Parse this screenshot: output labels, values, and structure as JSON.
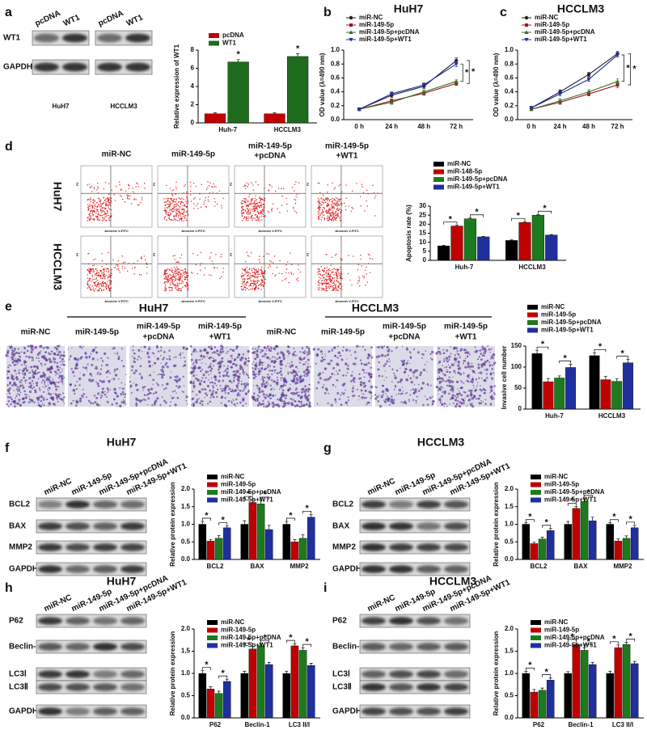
{
  "panel_labels": [
    "a",
    "b",
    "c",
    "d",
    "e",
    "f",
    "g",
    "h",
    "i"
  ],
  "blots": [
    {
      "groups": [
        "HuH7",
        "HCCLM3"
      ],
      "lanes": [
        "pcDNA",
        "WT1"
      ],
      "rows": [
        "WT1",
        "GAPDH"
      ]
    },
    {
      "lanes": [
        "miR-NC",
        "miR-149-5p",
        "miR-149-5p+pcDNA",
        "miR-149-5p+WT1"
      ],
      "rows": [
        "BCL2",
        "BAX",
        "MMP2",
        "GAPDH"
      ]
    },
    {
      "lanes": [
        "miR-NC",
        "miR-149-5p",
        "miR-149-5p+pcDNA",
        "miR-149-5p+WT1"
      ],
      "rows": [
        "BCL2",
        "BAX",
        "MMP2",
        "GAPDH"
      ]
    },
    {
      "lanes": [
        "miR-NC",
        "miR-149-5p",
        "miR-149-5p+pcDNA",
        "miR-149-5p+WT1"
      ],
      "rows": [
        "P62",
        "Beclin-1",
        "LC3Ⅰ",
        "LC3Ⅱ",
        "GAPDH"
      ]
    },
    {
      "lanes": [
        "miR-NC",
        "miR-149-5p",
        "miR-149-5p+pcDNA",
        "miR-149-5p+WT1"
      ],
      "rows": [
        "P62",
        "Beclin-1",
        "LC3Ⅰ",
        "LC3Ⅱ",
        "GAPDH"
      ]
    }
  ],
  "flow": {
    "columns": [
      [
        "miR-NC"
      ],
      [
        "miR-149-5p"
      ],
      [
        "miR-149-5p",
        "+pcDNA"
      ],
      [
        "miR-149-5p",
        "+WT1"
      ]
    ],
    "rows": [
      "HuH7",
      "HCCLM3"
    ],
    "x_label": "Annexin V-FITC",
    "y_label": "PI"
  },
  "invasion": {
    "groups": [
      "HuH7",
      "HCCLM3"
    ],
    "columns": [
      [
        "miR-NC"
      ],
      [
        "miR-149-5p"
      ],
      [
        "miR-149-5p",
        "+pcDNA"
      ],
      [
        "miR-149-5p",
        "+WT1"
      ]
    ]
  },
  "chart_data": [
    {
      "type": "bar",
      "ylabel": "Relative expression of WT1",
      "categories": [
        "Huh-7",
        "HCCLM3"
      ],
      "marker": "*",
      "series": [
        {
          "name": "pcDNA",
          "color": "#c00000",
          "values": [
            1,
            1
          ],
          "errors": [
            0.1,
            0.1
          ]
        },
        {
          "name": "WT1",
          "color": "#1e6b1e",
          "values": [
            6.7,
            7.3
          ],
          "errors": [
            0.25,
            0.3
          ]
        }
      ],
      "ylim": [
        0,
        8
      ],
      "yticks": [
        0,
        2,
        4,
        6,
        8
      ]
    },
    {
      "type": "line",
      "title": "HuH7",
      "ylabel": "OD value (λ=490 nm)",
      "categories": [
        "0 h",
        "24 h",
        "48 h",
        "72 h"
      ],
      "marker": "*",
      "series": [
        {
          "name": "miR-NC",
          "color": "#222222",
          "values": [
            0.15,
            0.35,
            0.48,
            0.85
          ],
          "errors": [
            0.02,
            0.03,
            0.03,
            0.04
          ]
        },
        {
          "name": "miR-149-5p",
          "color": "#a0141e",
          "values": [
            0.15,
            0.27,
            0.38,
            0.52
          ],
          "errors": [
            0.02,
            0.03,
            0.03,
            0.03
          ]
        },
        {
          "name": "miR-149-5p+pcDNA",
          "color": "#3b6e2b",
          "values": [
            0.15,
            0.25,
            0.4,
            0.55
          ],
          "errors": [
            0.02,
            0.03,
            0.03,
            0.03
          ]
        },
        {
          "name": "miR-149-5p+WT1",
          "color": "#1f2f9e",
          "values": [
            0.15,
            0.37,
            0.5,
            0.8
          ],
          "errors": [
            0.02,
            0.03,
            0.03,
            0.04
          ]
        }
      ],
      "ylim": [
        0,
        1
      ],
      "yticks": [
        {
          "value": 0,
          "label": "0.0"
        },
        0.2,
        0.4,
        0.6,
        0.8,
        {
          "value": 1,
          "label": "1.0"
        }
      ]
    },
    {
      "type": "line",
      "title": "HCCLM3",
      "ylabel": "OD value (λ=490 nm)",
      "categories": [
        "0 h",
        "24 h",
        "48 h",
        "72 h"
      ],
      "marker": "*",
      "series": [
        {
          "name": "miR-NC",
          "color": "#222222",
          "values": [
            0.17,
            0.4,
            0.65,
            0.95
          ],
          "errors": [
            0.02,
            0.03,
            0.03,
            0.03
          ]
        },
        {
          "name": "miR-149-5p",
          "color": "#a0141e",
          "values": [
            0.15,
            0.25,
            0.37,
            0.5
          ],
          "errors": [
            0.02,
            0.03,
            0.03,
            0.04
          ]
        },
        {
          "name": "miR-149-5p+pcDNA",
          "color": "#3b6e2b",
          "values": [
            0.15,
            0.27,
            0.4,
            0.55
          ],
          "errors": [
            0.02,
            0.03,
            0.03,
            0.04
          ]
        },
        {
          "name": "miR-149-5p+WT1",
          "color": "#1f2f9e",
          "values": [
            0.17,
            0.37,
            0.58,
            0.93
          ],
          "errors": [
            0.02,
            0.03,
            0.03,
            0.03
          ]
        }
      ],
      "ylim": [
        0,
        1
      ],
      "yticks": [
        {
          "value": 0,
          "label": "0.0"
        },
        0.2,
        0.4,
        0.6,
        0.8,
        {
          "value": 1,
          "label": "1.0"
        }
      ]
    },
    {
      "type": "bar",
      "ylabel": "Apoptosis rate (%)",
      "categories": [
        "Huh-7",
        "HCCLM3"
      ],
      "marker": "*",
      "series": [
        {
          "name": "miR-NC",
          "color": "#000000",
          "values": [
            8,
            11
          ],
          "errors": [
            0.3,
            0.3
          ]
        },
        {
          "name": "miR-148-5p",
          "color": "#c00000",
          "values": [
            19,
            21
          ],
          "errors": [
            0.4,
            0.4
          ]
        },
        {
          "name": "miR-149-5p+pcDNA",
          "color": "#1e7a1e",
          "values": [
            23,
            25
          ],
          "errors": [
            0.4,
            0.4
          ]
        },
        {
          "name": "miR-149-5p+WT1",
          "color": "#1f2f9e",
          "values": [
            13,
            14
          ],
          "errors": [
            0.3,
            0.3
          ]
        }
      ],
      "ylim": [
        0,
        30
      ],
      "yticks": [
        0,
        5,
        10,
        15,
        20,
        25,
        30
      ]
    },
    {
      "type": "bar",
      "ylabel": "Invasive cell number",
      "categories": [
        "Huh-7",
        "HCCLM3"
      ],
      "marker": "*",
      "series": [
        {
          "name": "miR-NC",
          "color": "#000000",
          "values": [
            132,
            127
          ],
          "errors": [
            8,
            7
          ]
        },
        {
          "name": "miR-149-5p",
          "color": "#c00000",
          "values": [
            65,
            70
          ],
          "errors": [
            8,
            8
          ]
        },
        {
          "name": "miR-149-5p+pcDNA",
          "color": "#1e7a1e",
          "values": [
            74,
            66
          ],
          "errors": [
            5,
            6
          ]
        },
        {
          "name": "miR-149-5p+WT1",
          "color": "#1f2f9e",
          "values": [
            99,
            110
          ],
          "errors": [
            8,
            8
          ]
        }
      ],
      "ylim": [
        0,
        150
      ],
      "yticks": [
        0,
        50,
        100,
        150
      ]
    },
    {
      "type": "bar",
      "title": "HuH7",
      "ylabel": "Relative protein expression",
      "categories": [
        "BCL2",
        "BAX",
        "MMP2"
      ],
      "marker": "*",
      "series": [
        {
          "name": "miR-NC",
          "color": "#000000",
          "values": [
            1.0,
            1.0,
            1.0
          ],
          "errors": [
            0.08,
            0.1,
            0.08
          ]
        },
        {
          "name": "miR-149-5p",
          "color": "#c00000",
          "values": [
            0.52,
            1.62,
            0.5
          ],
          "errors": [
            0.05,
            0.08,
            0.06
          ]
        },
        {
          "name": "miR-149-5p+pcDNA",
          "color": "#1e7a1e",
          "values": [
            0.6,
            1.58,
            0.6
          ],
          "errors": [
            0.08,
            0.1,
            0.1
          ]
        },
        {
          "name": "miR-149-5p+WT1",
          "color": "#1f2f9e",
          "values": [
            0.9,
            0.85,
            1.2
          ],
          "errors": [
            0.05,
            0.12,
            0.08
          ]
        }
      ],
      "ylim": [
        0,
        2
      ],
      "yticks": [
        {
          "value": 0,
          "label": "0.0"
        },
        0.5,
        {
          "value": 1,
          "label": "1.0"
        },
        1.5,
        {
          "value": 2,
          "label": "2.0"
        }
      ]
    },
    {
      "type": "bar",
      "title": "HCCLM3",
      "ylabel": "Relative protein expression",
      "categories": [
        "BCL2",
        "BAX",
        "MMP2"
      ],
      "marker": "*",
      "series": [
        {
          "name": "miR-NC",
          "color": "#000000",
          "values": [
            1.0,
            1.0,
            1.0
          ],
          "errors": [
            0.04,
            0.08,
            0.04
          ]
        },
        {
          "name": "miR-149-5p",
          "color": "#c00000",
          "values": [
            0.45,
            1.45,
            0.52
          ],
          "errors": [
            0.04,
            0.05,
            0.06
          ]
        },
        {
          "name": "miR-149-5p+pcDNA",
          "color": "#1e7a1e",
          "values": [
            0.58,
            1.65,
            0.6
          ],
          "errors": [
            0.05,
            0.08,
            0.07
          ]
        },
        {
          "name": "miR-149-5p+WT1",
          "color": "#1f2f9e",
          "values": [
            0.82,
            1.1,
            0.9
          ],
          "errors": [
            0.06,
            0.1,
            0.07
          ]
        }
      ],
      "ylim": [
        0,
        2
      ],
      "yticks": [
        {
          "value": 0,
          "label": "0.0"
        },
        0.5,
        {
          "value": 1,
          "label": "1.0"
        },
        1.5,
        {
          "value": 2,
          "label": "2.0"
        }
      ]
    },
    {
      "type": "bar",
      "title": "HuH7",
      "ylabel": "Relative protein expression",
      "categories": [
        "P62",
        "Beclin-1",
        "LC3 II/I"
      ],
      "marker": "*",
      "series": [
        {
          "name": "miR-NC",
          "color": "#000000",
          "values": [
            1.0,
            1.0,
            1.0
          ],
          "errors": [
            0.06,
            0.05,
            0.05
          ]
        },
        {
          "name": "miR-149-5p",
          "color": "#c00000",
          "values": [
            0.65,
            1.55,
            1.62
          ],
          "errors": [
            0.05,
            0.06,
            0.05
          ]
        },
        {
          "name": "miR-149-5p+pcDNA",
          "color": "#1e7a1e",
          "values": [
            0.55,
            1.62,
            1.52
          ],
          "errors": [
            0.05,
            0.05,
            0.06
          ]
        },
        {
          "name": "miR-149-5p+WT1",
          "color": "#1f2f9e",
          "values": [
            0.82,
            1.2,
            1.18
          ],
          "errors": [
            0.05,
            0.05,
            0.05
          ]
        }
      ],
      "ylim": [
        0,
        2
      ],
      "yticks": [
        {
          "value": 0,
          "label": "0.0"
        },
        0.5,
        {
          "value": 1,
          "label": "1.0"
        },
        1.5,
        {
          "value": 2,
          "label": "2.0"
        }
      ]
    },
    {
      "type": "bar",
      "title": "HCCLM3",
      "ylabel": "Relative protein expression",
      "categories": [
        "P62",
        "Beclin-1",
        "LC3 II/I"
      ],
      "marker": "*",
      "series": [
        {
          "name": "miR-NC",
          "color": "#000000",
          "values": [
            1.0,
            1.0,
            1.0
          ],
          "errors": [
            0.05,
            0.04,
            0.05
          ]
        },
        {
          "name": "miR-149-5p",
          "color": "#c00000",
          "values": [
            0.58,
            1.65,
            1.58
          ],
          "errors": [
            0.06,
            0.04,
            0.06
          ]
        },
        {
          "name": "miR-149-5p+pcDNA",
          "color": "#1e7a1e",
          "values": [
            0.62,
            1.52,
            1.65
          ],
          "errors": [
            0.05,
            0.06,
            0.05
          ]
        },
        {
          "name": "miR-149-5p+WT1",
          "color": "#1f2f9e",
          "values": [
            0.85,
            1.2,
            1.22
          ],
          "errors": [
            0.05,
            0.05,
            0.05
          ]
        }
      ],
      "ylim": [
        0,
        2
      ],
      "yticks": [
        {
          "value": 0,
          "label": "0.0"
        },
        0.5,
        {
          "value": 1,
          "label": "1.0"
        },
        1.5,
        {
          "value": 2,
          "label": "2.0"
        }
      ]
    }
  ]
}
